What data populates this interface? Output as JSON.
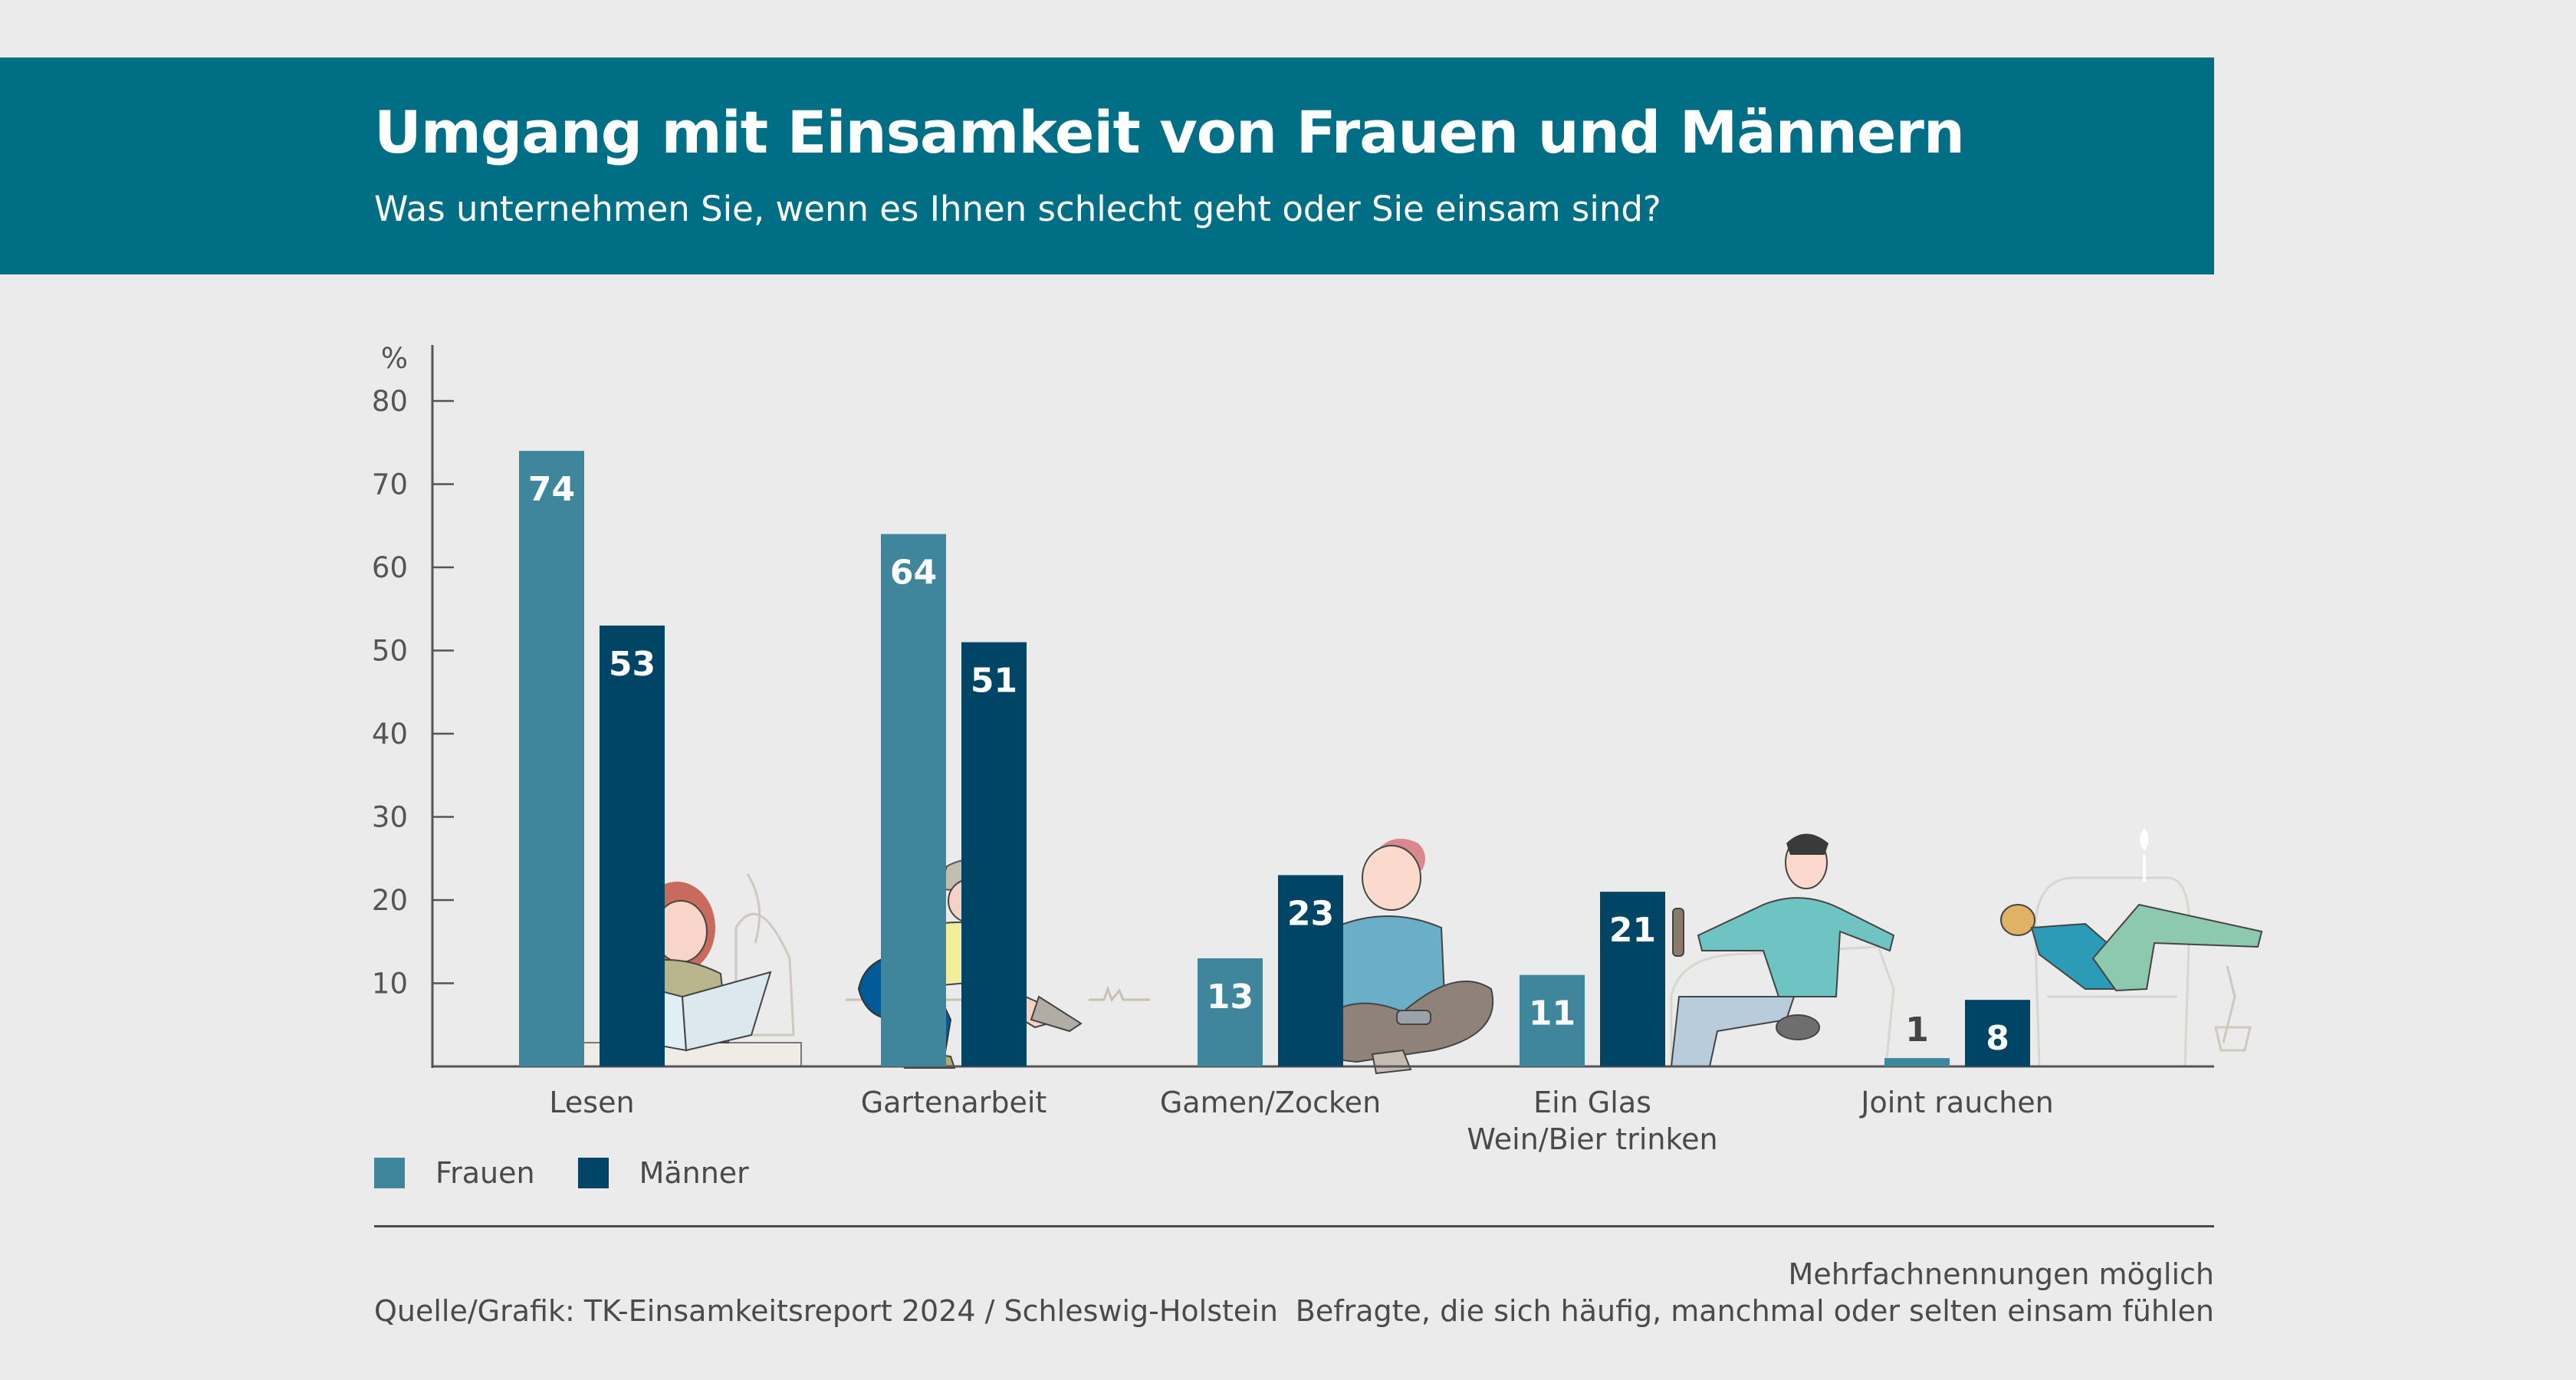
{
  "header": {
    "title": "Umgang mit Einsamkeit von Frauen und Männern",
    "subtitle": "Was unternehmen Sie, wenn es Ihnen schlecht geht oder Sie einsam sind?"
  },
  "colors": {
    "header_bg": "#006f85",
    "frauen": "#3f869c",
    "maenner": "#004565",
    "background": "#ebebeb"
  },
  "chart_data": {
    "type": "bar",
    "title": "Umgang mit Einsamkeit von Frauen und Männern",
    "subtitle": "Was unternehmen Sie, wenn es Ihnen schlecht geht oder Sie einsam sind?",
    "ylabel": "%",
    "xlabel": "",
    "ylim": [
      0,
      80
    ],
    "yticks": [
      10,
      20,
      30,
      40,
      50,
      60,
      70,
      80
    ],
    "grid": false,
    "legend_position": "bottom-left",
    "categories": [
      "Lesen",
      "Gartenarbeit",
      "Gamen/Zocken",
      "Ein Glas Wein/Bier trinken",
      "Joint rauchen"
    ],
    "category_lines": [
      [
        "Lesen"
      ],
      [
        "Gartenarbeit"
      ],
      [
        "Gamen/Zocken"
      ],
      [
        "Ein Glas",
        "Wein/Bier trinken"
      ],
      [
        "Joint rauchen"
      ]
    ],
    "series": [
      {
        "name": "Frauen",
        "color": "#3f869c",
        "values": [
          74,
          64,
          13,
          11,
          1
        ]
      },
      {
        "name": "Männer",
        "color": "#004565",
        "values": [
          53,
          51,
          23,
          21,
          8
        ]
      }
    ]
  },
  "illustrations": [
    "woman-reading-book-icon",
    "gardener-kneeling-icon",
    "man-playing-video-games-icon",
    "man-drinking-beer-on-sofa-icon",
    "person-smoking-in-armchair-icon"
  ],
  "legend": [
    {
      "label": "Frauen"
    },
    {
      "label": "Männer"
    }
  ],
  "footer": {
    "source": "Quelle/Grafik: TK-Einsamkeitsreport 2024 / Schleswig-Holstein",
    "note_1": "Mehrfachnennungen möglich",
    "note_2": "Befragte, die sich häufig, manchmal oder selten einsam fühlen"
  }
}
